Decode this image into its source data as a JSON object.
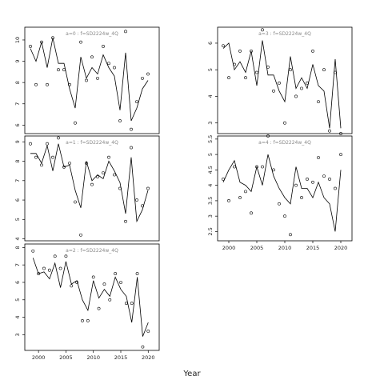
{
  "figure": {
    "xlabel": "Year"
  },
  "chart_data": [
    {
      "type": "line",
      "title": "a=0  :  f=SD2224w_4Q",
      "xlim": [
        1998,
        2022
      ],
      "ylim": [
        5.6,
        10.6
      ],
      "yticks": [
        6,
        7,
        8,
        9,
        10
      ],
      "xticks": [],
      "series": [
        {
          "kind": "line",
          "x": [
            1999,
            2000,
            2001,
            2002,
            2003,
            2004,
            2005,
            2006,
            2007,
            2008,
            2009,
            2010,
            2011,
            2012,
            2013,
            2014,
            2015,
            2016,
            2017,
            2018,
            2019,
            2020
          ],
          "y": [
            9.6,
            9.0,
            9.9,
            8.7,
            10.1,
            8.9,
            8.9,
            7.7,
            6.8,
            9.2,
            8.2,
            8.7,
            8.4,
            9.3,
            8.7,
            8.3,
            6.7,
            9.4,
            6.2,
            6.8,
            7.7,
            8.1
          ]
        },
        {
          "kind": "points",
          "x": [
            1999,
            2000,
            2001,
            2002,
            2003,
            2004,
            2005,
            2006,
            2007,
            2008,
            2009,
            2010,
            2011,
            2012,
            2013,
            2014,
            2015,
            2016,
            2017,
            2018,
            2019,
            2020
          ],
          "y": [
            9.7,
            7.9,
            9.9,
            7.9,
            10.1,
            8.6,
            8.6,
            7.9,
            6.1,
            9.9,
            8.1,
            9.2,
            8.2,
            9.7,
            8.9,
            8.7,
            6.2,
            10.4,
            5.8,
            7.1,
            8.2,
            8.4
          ]
        }
      ]
    },
    {
      "type": "line",
      "title": "a=3  :  f=SD2224w_4Q",
      "xlim": [
        1998,
        2022
      ],
      "ylim": [
        2.6,
        6.6
      ],
      "yticks": [
        3,
        4,
        5,
        6
      ],
      "xticks": [],
      "series": [
        {
          "kind": "line",
          "x": [
            1999,
            2000,
            2001,
            2002,
            2003,
            2004,
            2005,
            2006,
            2007,
            2008,
            2009,
            2010,
            2011,
            2012,
            2013,
            2014,
            2015,
            2016,
            2017,
            2018,
            2019,
            2020
          ],
          "y": [
            5.8,
            6.0,
            5.0,
            5.3,
            4.9,
            5.7,
            4.4,
            6.1,
            4.8,
            4.8,
            4.2,
            3.8,
            5.5,
            4.3,
            4.7,
            4.3,
            5.2,
            4.4,
            4.2,
            2.8,
            5.4,
            2.8
          ]
        },
        {
          "kind": "points",
          "x": [
            1999,
            2000,
            2001,
            2002,
            2003,
            2004,
            2005,
            2006,
            2007,
            2008,
            2009,
            2010,
            2011,
            2012,
            2013,
            2014,
            2015,
            2016,
            2017,
            2018,
            2019,
            2020
          ],
          "y": [
            5.9,
            4.7,
            5.2,
            5.7,
            4.7,
            5.7,
            4.9,
            6.5,
            5.1,
            4.2,
            4.5,
            3.0,
            5.0,
            4.0,
            4.3,
            4.5,
            5.7,
            3.8,
            5.0,
            2.7,
            4.9,
            2.6
          ]
        }
      ]
    },
    {
      "type": "line",
      "title": "a=1  :  f=SD2224w_4Q",
      "xlim": [
        1998,
        2022
      ],
      "ylim": [
        3.9,
        9.3
      ],
      "yticks": [
        4,
        5,
        6,
        7,
        8,
        9
      ],
      "xticks": [],
      "series": [
        {
          "kind": "line",
          "x": [
            1999,
            2000,
            2001,
            2002,
            2003,
            2004,
            2005,
            2006,
            2007,
            2008,
            2009,
            2010,
            2011,
            2012,
            2013,
            2014,
            2015,
            2016,
            2017,
            2018,
            2019,
            2020
          ],
          "y": [
            8.4,
            8.4,
            7.9,
            8.8,
            7.5,
            8.9,
            7.7,
            7.8,
            6.5,
            5.6,
            8.0,
            7.0,
            7.3,
            7.1,
            8.0,
            7.5,
            6.9,
            5.3,
            8.2,
            4.9,
            5.5,
            6.5
          ]
        },
        {
          "kind": "points",
          "x": [
            1999,
            2000,
            2001,
            2002,
            2003,
            2004,
            2005,
            2006,
            2007,
            2008,
            2009,
            2010,
            2011,
            2012,
            2013,
            2014,
            2015,
            2016,
            2017,
            2018,
            2019,
            2020
          ],
          "y": [
            8.9,
            8.2,
            7.8,
            8.9,
            8.2,
            9.2,
            7.7,
            7.9,
            5.9,
            4.2,
            7.9,
            6.8,
            7.2,
            7.4,
            8.2,
            7.3,
            6.6,
            4.9,
            8.7,
            6.0,
            5.7,
            6.6
          ]
        }
      ]
    },
    {
      "type": "line",
      "title": "a=4  :  f=SD2224w_4Q",
      "xlim": [
        1998,
        2022
      ],
      "ylim": [
        2.2,
        5.6
      ],
      "yticks": [
        2.5,
        3.0,
        3.5,
        4.0,
        4.5,
        5.0,
        5.5
      ],
      "xticks": [
        2000,
        2005,
        2010,
        2015,
        2020
      ],
      "series": [
        {
          "kind": "line",
          "x": [
            1999,
            2000,
            2001,
            2002,
            2003,
            2004,
            2005,
            2006,
            2007,
            2008,
            2009,
            2010,
            2011,
            2012,
            2013,
            2014,
            2015,
            2016,
            2017,
            2018,
            2019,
            2020
          ],
          "y": [
            4.1,
            4.5,
            4.8,
            4.1,
            4.0,
            3.8,
            4.6,
            4.0,
            5.0,
            4.3,
            3.9,
            3.6,
            3.4,
            4.6,
            3.9,
            3.9,
            3.6,
            4.1,
            3.6,
            3.4,
            2.5,
            4.5
          ]
        },
        {
          "kind": "points",
          "x": [
            1999,
            2000,
            2001,
            2002,
            2003,
            2004,
            2005,
            2006,
            2007,
            2008,
            2009,
            2010,
            2011,
            2012,
            2013,
            2014,
            2015,
            2016,
            2017,
            2018,
            2019,
            2020
          ],
          "y": [
            4.2,
            3.5,
            4.6,
            3.6,
            3.8,
            3.1,
            4.6,
            4.6,
            5.6,
            4.5,
            3.4,
            3.0,
            2.4,
            4.0,
            3.6,
            4.2,
            4.1,
            4.9,
            4.3,
            4.2,
            3.9,
            5.0
          ]
        }
      ]
    },
    {
      "type": "line",
      "title": "a=2  :  f=SD2224w_4Q",
      "xlim": [
        1997.5,
        2022
      ],
      "ylim": [
        2.1,
        8.2
      ],
      "yticks": [
        3,
        4,
        5,
        6,
        7,
        8
      ],
      "xticks": [
        2000,
        2005,
        2010,
        2015,
        2020
      ],
      "series": [
        {
          "kind": "line",
          "x": [
            1999,
            2000,
            2001,
            2002,
            2003,
            2004,
            2005,
            2006,
            2007,
            2008,
            2009,
            2010,
            2011,
            2012,
            2013,
            2014,
            2015,
            2016,
            2017,
            2018,
            2019,
            2020
          ],
          "y": [
            7.4,
            6.5,
            6.6,
            6.2,
            7.1,
            5.7,
            7.2,
            5.9,
            6.1,
            5.0,
            4.4,
            6.1,
            5.1,
            5.6,
            5.2,
            6.3,
            5.6,
            5.2,
            3.7,
            6.3,
            2.9,
            3.7
          ]
        },
        {
          "kind": "points",
          "x": [
            1999,
            2000,
            2001,
            2002,
            2003,
            2004,
            2005,
            2006,
            2007,
            2008,
            2009,
            2010,
            2011,
            2012,
            2013,
            2014,
            2015,
            2016,
            2017,
            2018,
            2019,
            2020
          ],
          "y": [
            7.8,
            6.5,
            6.8,
            6.7,
            7.5,
            6.8,
            7.5,
            5.8,
            6.0,
            3.8,
            3.8,
            6.3,
            4.5,
            5.9,
            5.0,
            6.5,
            6.0,
            4.8,
            4.8,
            6.5,
            2.3,
            3.2
          ]
        }
      ]
    }
  ]
}
